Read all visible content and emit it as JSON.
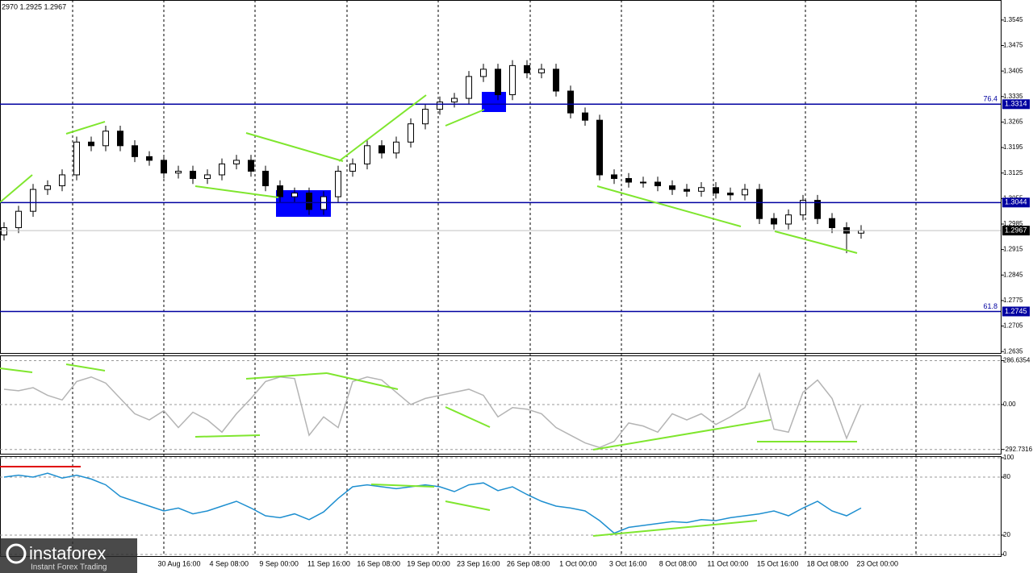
{
  "header": "2970 1.2925 1.2967",
  "logo": {
    "title": "instaforex",
    "subtitle": "Instant Forex Trading"
  },
  "x_labels": [
    "30 Aug 16:00",
    "4 Sep 08:00",
    "9 Sep 00:00",
    "11 Sep 16:00",
    "16 Sep 08:00",
    "19 Sep 00:00",
    "23 Sep 16:00",
    "26 Sep 08:00",
    "1 Oct 00:00",
    "3 Oct 16:00",
    "8 Oct 08:00",
    "11 Oct 00:00",
    "15 Oct 16:00",
    "18 Oct 08:00",
    "23 Oct 00:00"
  ],
  "chart_data": [
    {
      "type": "candlestick",
      "open": [
        1.2955,
        1.2975,
        1.302,
        1.308,
        1.309,
        1.312,
        1.321,
        1.32,
        1.324,
        1.32,
        1.317,
        1.316,
        1.3125,
        1.313,
        1.311,
        1.312,
        1.315,
        1.316,
        1.313,
        1.309,
        1.306,
        1.307,
        1.3025,
        1.306,
        1.313,
        1.315,
        1.32,
        1.318,
        1.321,
        1.326,
        1.33,
        1.332,
        1.333,
        1.339,
        1.341,
        1.334,
        1.342,
        1.34,
        1.341,
        1.335,
        1.329,
        1.327,
        1.312,
        1.311,
        1.31,
        1.31,
        1.309,
        1.308,
        1.3075,
        1.3085,
        1.307,
        1.3065,
        1.308,
        1.3,
        1.2985,
        1.301,
        1.305,
        1.3,
        1.2975,
        1.296
      ],
      "high": [
        1.299,
        1.3035,
        1.3095,
        1.3105,
        1.3135,
        1.3225,
        1.3225,
        1.3255,
        1.3255,
        1.3215,
        1.3185,
        1.3175,
        1.3145,
        1.3145,
        1.3135,
        1.3165,
        1.3175,
        1.3175,
        1.3145,
        1.3105,
        1.3085,
        1.3085,
        1.3075,
        1.3145,
        1.3165,
        1.3215,
        1.3215,
        1.3225,
        1.3275,
        1.3315,
        1.3335,
        1.3345,
        1.3405,
        1.3425,
        1.3425,
        1.3435,
        1.3435,
        1.3425,
        1.3425,
        1.3365,
        1.3305,
        1.3285,
        1.3135,
        1.3125,
        1.3115,
        1.3115,
        1.3105,
        1.3095,
        1.31,
        1.31,
        1.3085,
        1.3095,
        1.3095,
        1.3015,
        1.3025,
        1.3065,
        1.3065,
        1.3015,
        1.299,
        1.2982
      ],
      "low": [
        1.294,
        1.296,
        1.3005,
        1.3065,
        1.3075,
        1.3105,
        1.3185,
        1.3185,
        1.3185,
        1.3155,
        1.3145,
        1.311,
        1.311,
        1.3095,
        1.3095,
        1.3105,
        1.3135,
        1.3115,
        1.3075,
        1.3045,
        1.3045,
        1.301,
        1.301,
        1.3045,
        1.3115,
        1.3135,
        1.3165,
        1.3165,
        1.3195,
        1.3245,
        1.3285,
        1.3305,
        1.3315,
        1.3375,
        1.3325,
        1.3325,
        1.3385,
        1.3385,
        1.3335,
        1.3275,
        1.3255,
        1.3105,
        1.3095,
        1.3085,
        1.3085,
        1.3075,
        1.3065,
        1.306,
        1.306,
        1.3055,
        1.305,
        1.305,
        1.2985,
        1.297,
        1.297,
        1.2995,
        1.2985,
        1.296,
        1.2905,
        1.2945
      ],
      "close": [
        1.2975,
        1.302,
        1.308,
        1.309,
        1.312,
        1.321,
        1.32,
        1.324,
        1.32,
        1.317,
        1.316,
        1.3125,
        1.313,
        1.311,
        1.312,
        1.315,
        1.316,
        1.313,
        1.309,
        1.306,
        1.307,
        1.3025,
        1.306,
        1.313,
        1.315,
        1.32,
        1.318,
        1.321,
        1.326,
        1.33,
        1.332,
        1.333,
        1.339,
        1.341,
        1.334,
        1.342,
        1.34,
        1.341,
        1.335,
        1.329,
        1.327,
        1.312,
        1.311,
        1.31,
        1.31,
        1.309,
        1.308,
        1.3075,
        1.3085,
        1.307,
        1.3065,
        1.308,
        1.3,
        1.2985,
        1.301,
        1.305,
        1.3,
        1.2975,
        1.296,
        1.2967
      ],
      "ylim": [
        1.2631,
        1.36
      ],
      "yticks": [
        1.3545,
        1.3475,
        1.3405,
        1.3335,
        1.3265,
        1.3195,
        1.3125,
        1.3055,
        1.2985,
        1.2915,
        1.2845,
        1.2775,
        1.2705,
        1.2635
      ],
      "levels": [
        {
          "value": 1.3314,
          "fib_label": "76.4"
        },
        {
          "value": 1.3044
        },
        {
          "value": 1.2745,
          "fib_label": "61.8"
        }
      ],
      "level_color": "#0000a0",
      "last": 1.2967
    },
    {
      "type": "line",
      "series": [
        {
          "color": "#b4b4b4",
          "values": [
            100,
            90,
            110,
            60,
            30,
            150,
            180,
            140,
            40,
            -60,
            -100,
            -40,
            -150,
            -50,
            -100,
            -180,
            -60,
            40,
            150,
            180,
            170,
            -200,
            -80,
            -150,
            150,
            180,
            160,
            80,
            0,
            40,
            60,
            80,
            100,
            60,
            -80,
            -20,
            -30,
            -60,
            -150,
            -200,
            -250,
            -280,
            -240,
            -120,
            -140,
            -180,
            -60,
            -100,
            -60,
            -130,
            -80,
            -20,
            200,
            -160,
            -180,
            80,
            160,
            40,
            -220,
            0
          ]
        }
      ],
      "ylim": [
        -310,
        310
      ],
      "yticks": [
        286.6354,
        {
          "value": 0,
          "label": "0.00"
        },
        -292.7316
      ]
    },
    {
      "type": "line",
      "series": [
        {
          "color": "#1e8fd0",
          "values": [
            80,
            82,
            80,
            84,
            79,
            82,
            78,
            72,
            60,
            55,
            50,
            45,
            48,
            42,
            45,
            50,
            55,
            48,
            40,
            38,
            42,
            36,
            44,
            58,
            70,
            72,
            70,
            68,
            70,
            72,
            70,
            65,
            72,
            74,
            66,
            70,
            62,
            55,
            50,
            48,
            45,
            35,
            22,
            28,
            30,
            32,
            34,
            33,
            36,
            35,
            38,
            40,
            42,
            45,
            40,
            48,
            55,
            45,
            40,
            48
          ]
        }
      ],
      "ylim": [
        0,
        100
      ],
      "yticks": [
        100,
        80,
        20,
        0
      ]
    }
  ]
}
